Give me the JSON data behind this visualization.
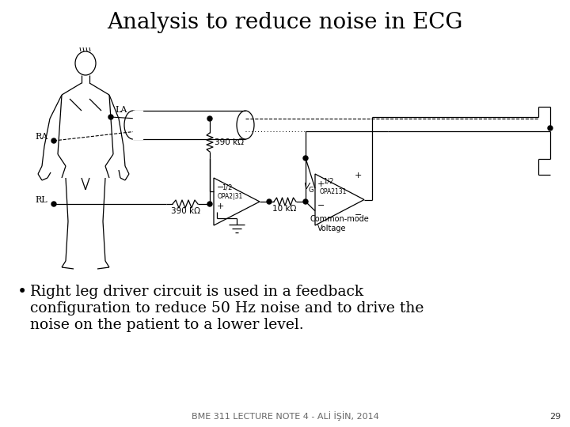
{
  "title": "Analysis to reduce noise in ECG",
  "bullet_text": "Right leg driver circuit is used in a feedback\nconfiguration to reduce 50 Hz noise and to drive the\nnoise on the patient to a lower level.",
  "footer_text": "BME 311 LECTURE NOTE 4 - ALİ İŞİN, 2014",
  "page_number": "29",
  "bg_color": "#ffffff",
  "title_fontsize": 20,
  "bullet_fontsize": 13.5,
  "footer_fontsize": 8
}
